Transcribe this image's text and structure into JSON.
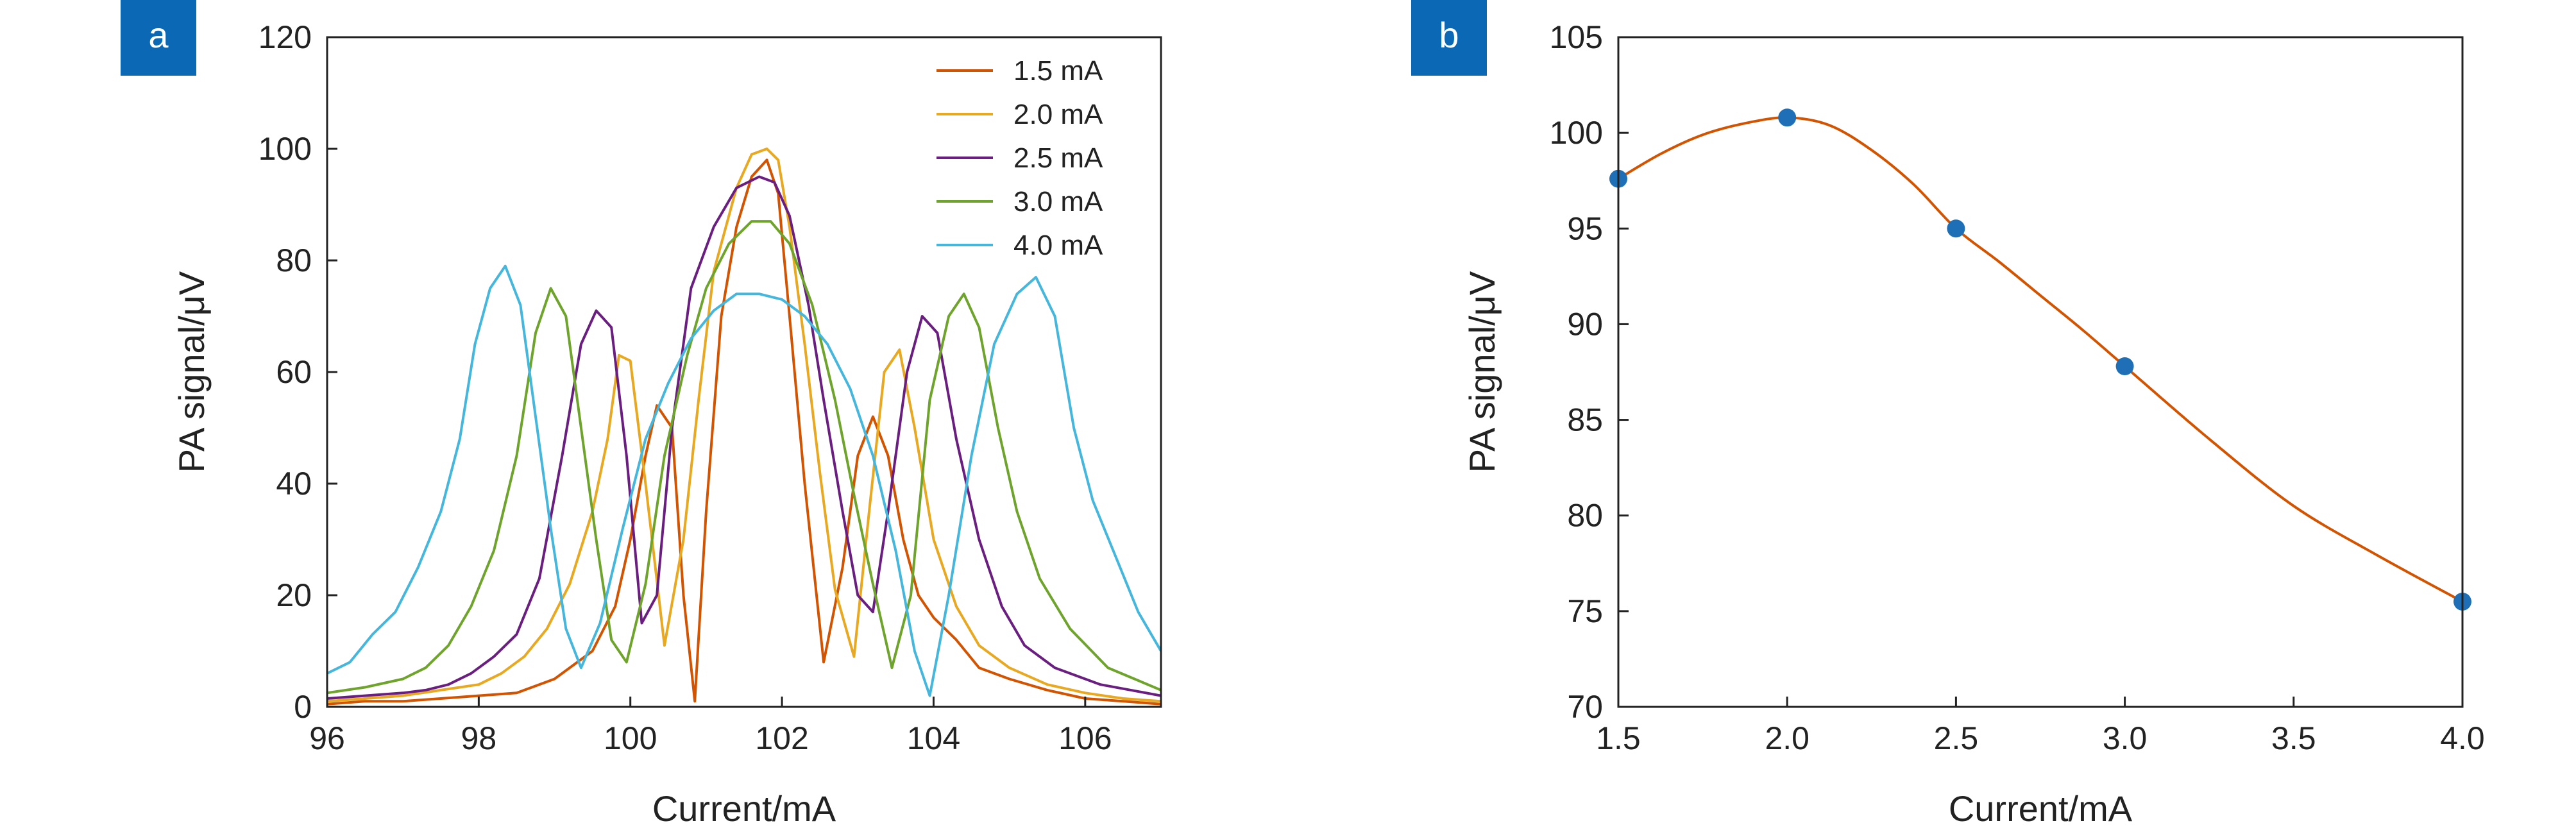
{
  "colors": {
    "s15": "#d35400",
    "s20": "#e8a820",
    "s25": "#6a1f80",
    "s30": "#6ea42c",
    "s40": "#45b6dc",
    "panel_badge": "#0a68b4",
    "fit_line": "#d35400",
    "markers": "#1e6fb5"
  },
  "chart_data": [
    {
      "type": "line",
      "panel_label": "a",
      "title": "",
      "xlabel": "Current/mA",
      "ylabel": "PA signal/μV",
      "xlim": [
        96,
        107
      ],
      "ylim": [
        0,
        120
      ],
      "xticks": [
        96,
        98,
        100,
        102,
        104,
        106
      ],
      "yticks": [
        0,
        20,
        40,
        60,
        80,
        100,
        120
      ],
      "legend_position": "top-right",
      "series": [
        {
          "name": "1.5 mA",
          "color_key": "s15",
          "points": [
            [
              96,
              0.5
            ],
            [
              96.5,
              1
            ],
            [
              97,
              1
            ],
            [
              97.5,
              1.5
            ],
            [
              98,
              2
            ],
            [
              98.5,
              2.5
            ],
            [
              99,
              5
            ],
            [
              99.5,
              10
            ],
            [
              99.8,
              18
            ],
            [
              100,
              30
            ],
            [
              100.2,
              45
            ],
            [
              100.35,
              54
            ],
            [
              100.55,
              50
            ],
            [
              100.7,
              20
            ],
            [
              100.85,
              1
            ],
            [
              101,
              35
            ],
            [
              101.2,
              70
            ],
            [
              101.4,
              86
            ],
            [
              101.6,
              95
            ],
            [
              101.8,
              98
            ],
            [
              101.95,
              92
            ],
            [
              102.1,
              70
            ],
            [
              102.3,
              40
            ],
            [
              102.55,
              8
            ],
            [
              102.8,
              25
            ],
            [
              103.0,
              45
            ],
            [
              103.2,
              52
            ],
            [
              103.4,
              45
            ],
            [
              103.6,
              30
            ],
            [
              103.8,
              20
            ],
            [
              104.0,
              16
            ],
            [
              104.3,
              12
            ],
            [
              104.6,
              7
            ],
            [
              105,
              5
            ],
            [
              105.5,
              3
            ],
            [
              106,
              1.5
            ],
            [
              106.5,
              1
            ],
            [
              107,
              0.5
            ]
          ]
        },
        {
          "name": "2.0 mA",
          "color_key": "s20",
          "points": [
            [
              96,
              1
            ],
            [
              96.5,
              1.5
            ],
            [
              97,
              2
            ],
            [
              97.5,
              3
            ],
            [
              98,
              4
            ],
            [
              98.3,
              6
            ],
            [
              98.6,
              9
            ],
            [
              98.9,
              14
            ],
            [
              99.2,
              22
            ],
            [
              99.5,
              35
            ],
            [
              99.7,
              48
            ],
            [
              99.85,
              63
            ],
            [
              100,
              62
            ],
            [
              100.2,
              40
            ],
            [
              100.45,
              11
            ],
            [
              100.7,
              30
            ],
            [
              100.9,
              55
            ],
            [
              101.1,
              78
            ],
            [
              101.4,
              93
            ],
            [
              101.6,
              99
            ],
            [
              101.8,
              100
            ],
            [
              101.95,
              98
            ],
            [
              102.1,
              86
            ],
            [
              102.3,
              65
            ],
            [
              102.5,
              42
            ],
            [
              102.7,
              21
            ],
            [
              102.95,
              9
            ],
            [
              103.15,
              35
            ],
            [
              103.35,
              60
            ],
            [
              103.55,
              64
            ],
            [
              103.75,
              50
            ],
            [
              104,
              30
            ],
            [
              104.3,
              18
            ],
            [
              104.6,
              11
            ],
            [
              105,
              7
            ],
            [
              105.5,
              4
            ],
            [
              106,
              2.5
            ],
            [
              106.5,
              1.5
            ],
            [
              107,
              1
            ]
          ]
        },
        {
          "name": "2.5 mA",
          "color_key": "s25",
          "points": [
            [
              96,
              1.5
            ],
            [
              96.5,
              2
            ],
            [
              97,
              2.5
            ],
            [
              97.3,
              3
            ],
            [
              97.6,
              4
            ],
            [
              97.9,
              6
            ],
            [
              98.2,
              9
            ],
            [
              98.5,
              13
            ],
            [
              98.8,
              23
            ],
            [
              99.1,
              45
            ],
            [
              99.35,
              65
            ],
            [
              99.55,
              71
            ],
            [
              99.75,
              68
            ],
            [
              99.95,
              45
            ],
            [
              100.15,
              15
            ],
            [
              100.35,
              20
            ],
            [
              100.55,
              50
            ],
            [
              100.8,
              75
            ],
            [
              101.1,
              86
            ],
            [
              101.4,
              93
            ],
            [
              101.7,
              95
            ],
            [
              101.9,
              94
            ],
            [
              102.1,
              88
            ],
            [
              102.35,
              72
            ],
            [
              102.55,
              55
            ],
            [
              102.8,
              35
            ],
            [
              103.0,
              20
            ],
            [
              103.2,
              17
            ],
            [
              103.4,
              35
            ],
            [
              103.65,
              60
            ],
            [
              103.85,
              70
            ],
            [
              104.05,
              67
            ],
            [
              104.3,
              48
            ],
            [
              104.6,
              30
            ],
            [
              104.9,
              18
            ],
            [
              105.2,
              11
            ],
            [
              105.6,
              7
            ],
            [
              106.2,
              4
            ],
            [
              107,
              2
            ]
          ]
        },
        {
          "name": "3.0 mA",
          "color_key": "s30",
          "points": [
            [
              96,
              2.5
            ],
            [
              96.5,
              3.5
            ],
            [
              97,
              5
            ],
            [
              97.3,
              7
            ],
            [
              97.6,
              11
            ],
            [
              97.9,
              18
            ],
            [
              98.2,
              28
            ],
            [
              98.5,
              45
            ],
            [
              98.75,
              67
            ],
            [
              98.95,
              75
            ],
            [
              99.15,
              70
            ],
            [
              99.35,
              50
            ],
            [
              99.55,
              30
            ],
            [
              99.75,
              12
            ],
            [
              99.95,
              8
            ],
            [
              100.2,
              22
            ],
            [
              100.45,
              45
            ],
            [
              100.75,
              63
            ],
            [
              101,
              75
            ],
            [
              101.3,
              83
            ],
            [
              101.6,
              87
            ],
            [
              101.85,
              87
            ],
            [
              102.1,
              83
            ],
            [
              102.4,
              72
            ],
            [
              102.7,
              55
            ],
            [
              102.95,
              38
            ],
            [
              103.2,
              22
            ],
            [
              103.45,
              7
            ],
            [
              103.7,
              20
            ],
            [
              103.95,
              55
            ],
            [
              104.2,
              70
            ],
            [
              104.4,
              74
            ],
            [
              104.6,
              68
            ],
            [
              104.85,
              50
            ],
            [
              105.1,
              35
            ],
            [
              105.4,
              23
            ],
            [
              105.8,
              14
            ],
            [
              106.3,
              7
            ],
            [
              107,
              3
            ]
          ]
        },
        {
          "name": "4.0 mA",
          "color_key": "s40",
          "points": [
            [
              96,
              6
            ],
            [
              96.3,
              8
            ],
            [
              96.6,
              13
            ],
            [
              96.9,
              17
            ],
            [
              97.2,
              25
            ],
            [
              97.5,
              35
            ],
            [
              97.75,
              48
            ],
            [
              97.95,
              65
            ],
            [
              98.15,
              75
            ],
            [
              98.35,
              79
            ],
            [
              98.55,
              72
            ],
            [
              98.75,
              52
            ],
            [
              98.95,
              32
            ],
            [
              99.15,
              14
            ],
            [
              99.35,
              7
            ],
            [
              99.6,
              15
            ],
            [
              99.9,
              32
            ],
            [
              100.2,
              48
            ],
            [
              100.5,
              58
            ],
            [
              100.8,
              66
            ],
            [
              101.1,
              71
            ],
            [
              101.4,
              74
            ],
            [
              101.7,
              74
            ],
            [
              102.0,
              73
            ],
            [
              102.3,
              70
            ],
            [
              102.6,
              65
            ],
            [
              102.9,
              57
            ],
            [
              103.2,
              45
            ],
            [
              103.5,
              28
            ],
            [
              103.75,
              10
            ],
            [
              103.95,
              2
            ],
            [
              104.2,
              20
            ],
            [
              104.5,
              45
            ],
            [
              104.8,
              65
            ],
            [
              105.1,
              74
            ],
            [
              105.35,
              77
            ],
            [
              105.6,
              70
            ],
            [
              105.85,
              50
            ],
            [
              106.1,
              37
            ],
            [
              106.4,
              27
            ],
            [
              106.7,
              17
            ],
            [
              107,
              10
            ]
          ]
        }
      ]
    },
    {
      "type": "scatter",
      "panel_label": "b",
      "title": "",
      "xlabel": "Current/mA",
      "ylabel": "PA signal/μV",
      "xlim": [
        1.5,
        4.0
      ],
      "ylim": [
        70,
        105
      ],
      "xticks": [
        "1.5",
        "2.0",
        "2.5",
        "3.0",
        "3.5",
        "4.0"
      ],
      "yticks": [
        70,
        75,
        80,
        85,
        90,
        95,
        100,
        105
      ],
      "points": [
        [
          1.5,
          97.6
        ],
        [
          2.0,
          100.8
        ],
        [
          2.5,
          95.0
        ],
        [
          3.0,
          87.8
        ],
        [
          4.0,
          75.5
        ]
      ],
      "fit_curve": [
        [
          1.5,
          97.6
        ],
        [
          1.625,
          98.9
        ],
        [
          1.75,
          99.9
        ],
        [
          1.875,
          100.5
        ],
        [
          2.0,
          100.8
        ],
        [
          2.125,
          100.4
        ],
        [
          2.25,
          99.1
        ],
        [
          2.375,
          97.3
        ],
        [
          2.5,
          95.0
        ],
        [
          2.625,
          93.3
        ],
        [
          2.75,
          91.5
        ],
        [
          2.875,
          89.7
        ],
        [
          3.0,
          87.8
        ],
        [
          3.25,
          84.0
        ],
        [
          3.5,
          80.5
        ],
        [
          3.75,
          77.9
        ],
        [
          4.0,
          75.5
        ]
      ]
    }
  ]
}
